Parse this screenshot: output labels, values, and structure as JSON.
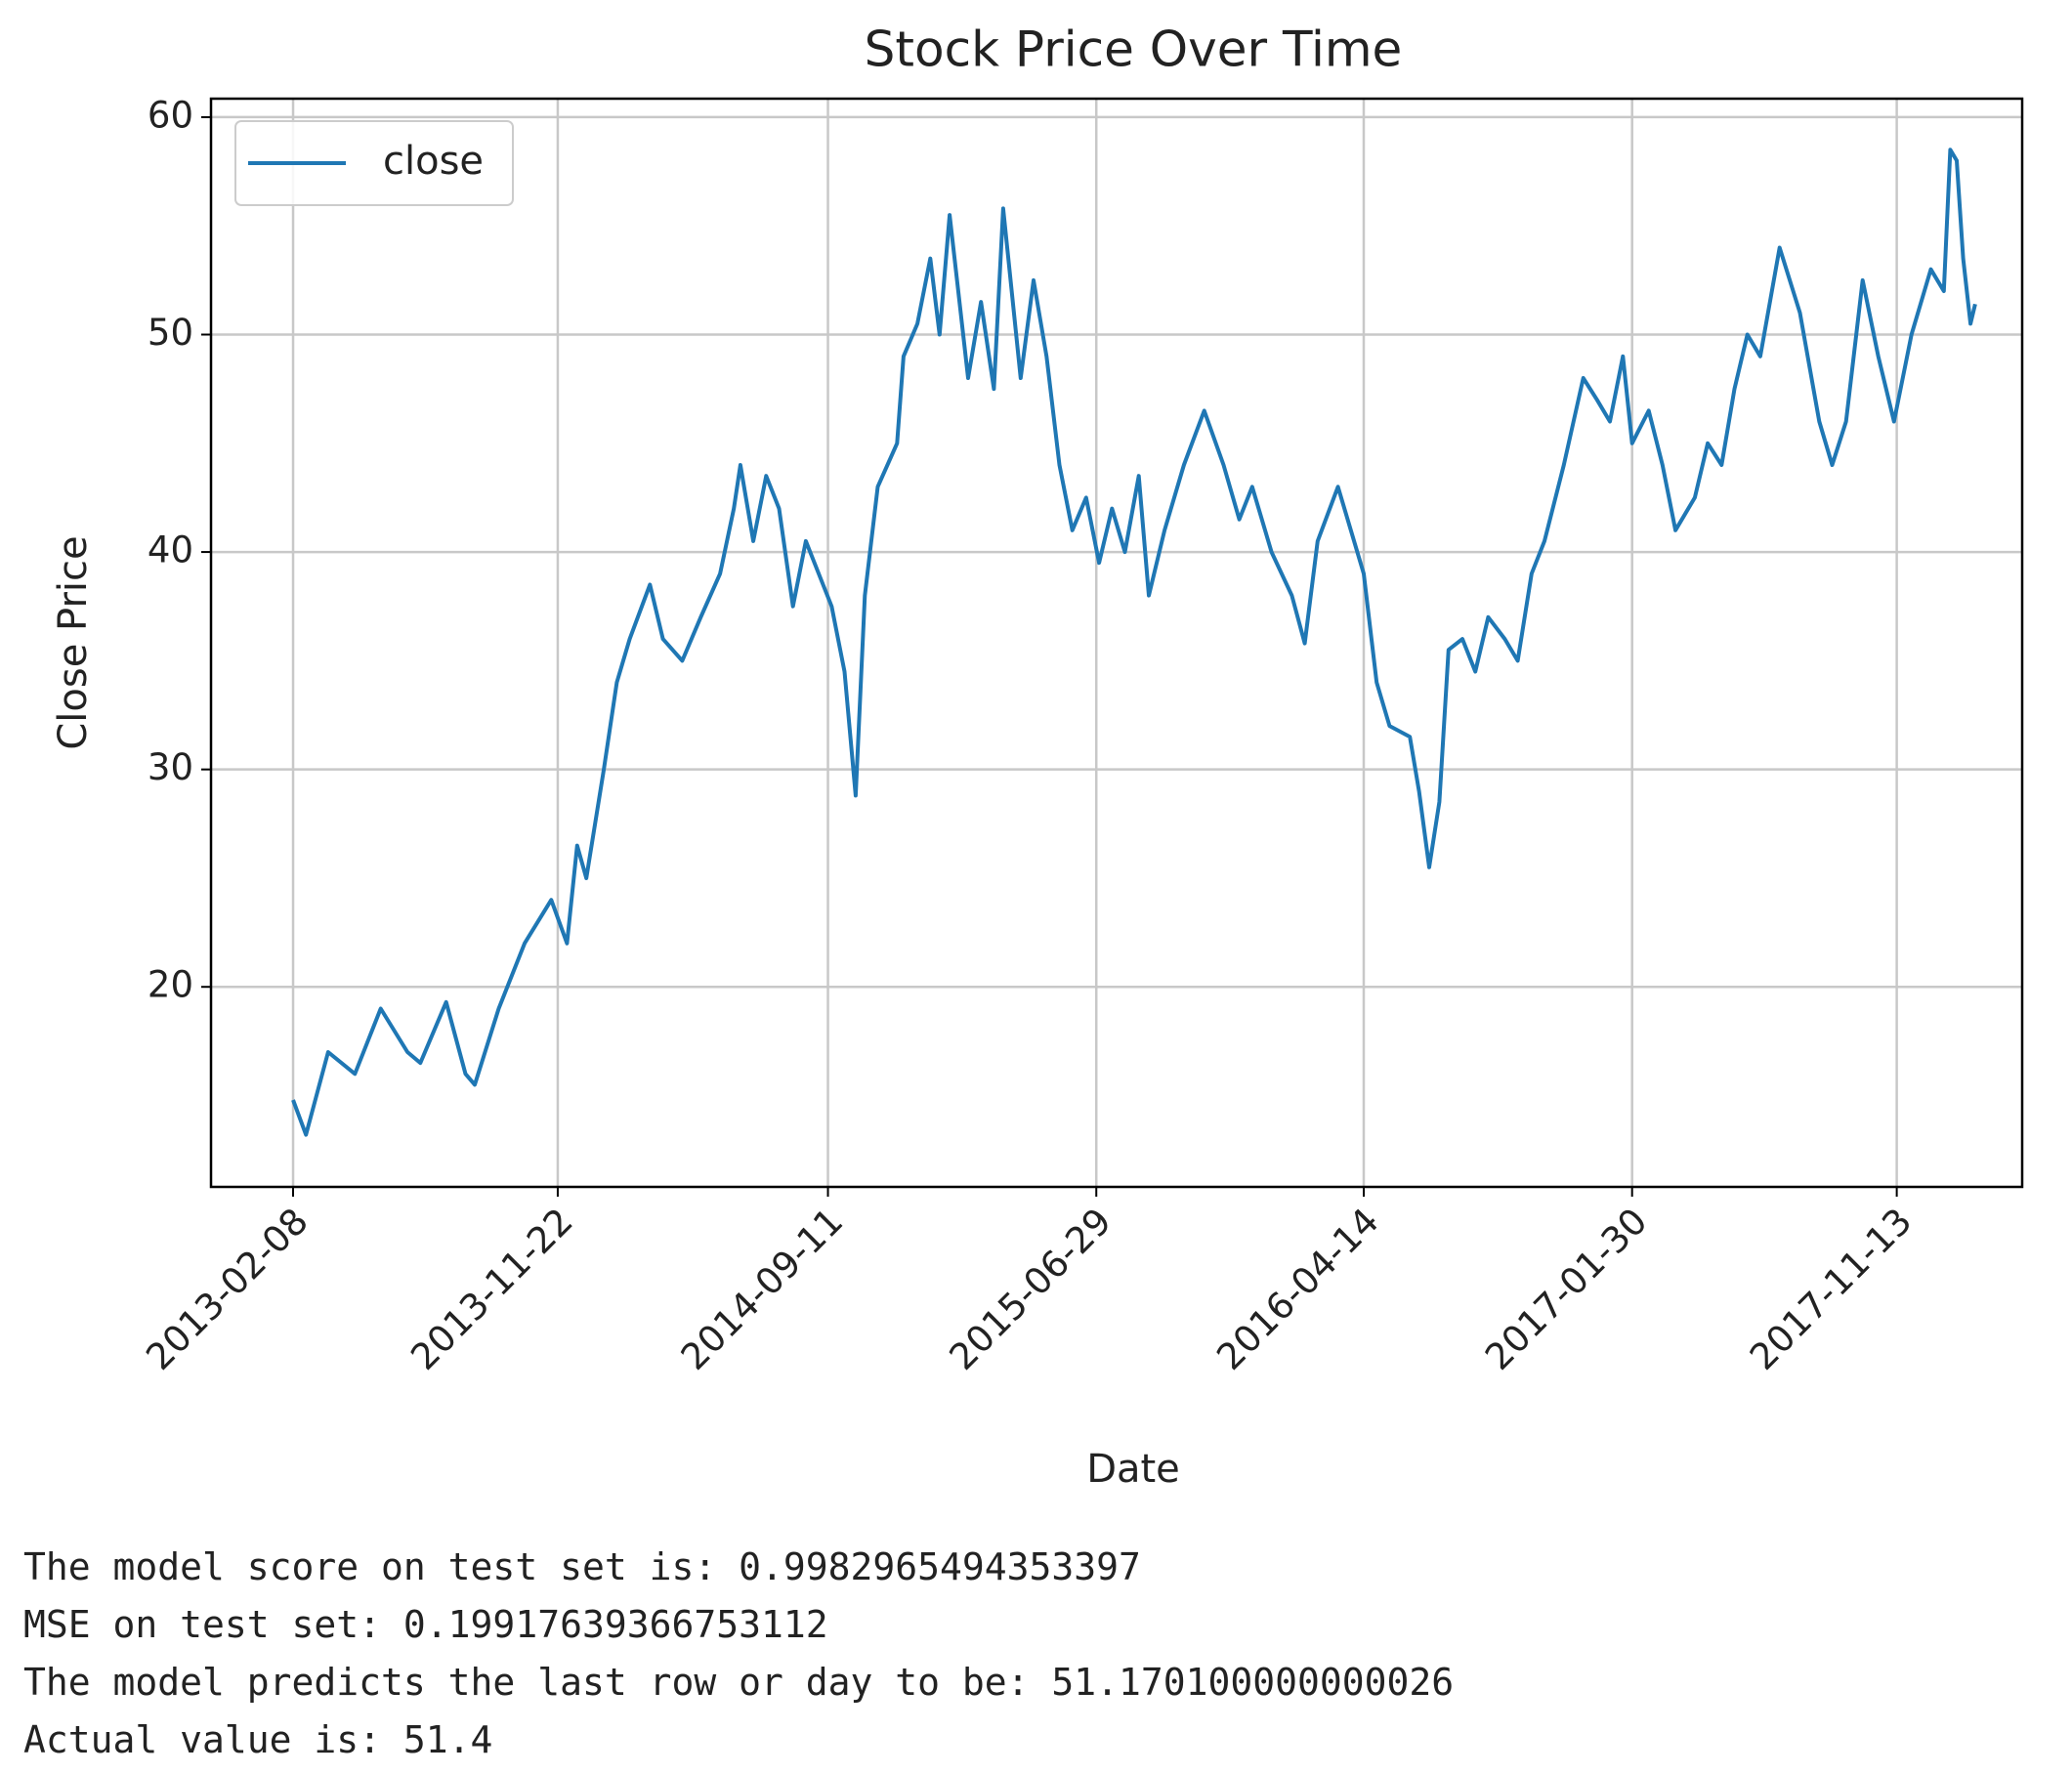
{
  "chart_data": {
    "type": "line",
    "title": "Stock Price Over Time",
    "x_label": "Date",
    "y_label": "Close Price",
    "x": [
      "2013-02-08",
      "2013-02-22",
      "2013-03-18",
      "2013-04-16",
      "2013-05-14",
      "2013-06-12",
      "2013-06-26",
      "2013-07-24",
      "2013-08-14",
      "2013-08-24",
      "2013-09-19",
      "2013-10-17",
      "2013-11-15",
      "2013-12-02",
      "2013-12-13",
      "2013-12-23",
      "2014-01-11",
      "2014-01-25",
      "2014-02-08",
      "2014-03-02",
      "2014-03-16",
      "2014-04-06",
      "2014-04-26",
      "2014-05-17",
      "2014-06-01",
      "2014-06-08",
      "2014-06-22",
      "2014-07-06",
      "2014-07-20",
      "2014-08-04",
      "2014-08-18",
      "2014-09-01",
      "2014-09-15",
      "2014-09-29",
      "2014-10-11",
      "2014-10-21",
      "2014-11-04",
      "2014-11-25",
      "2014-12-02",
      "2014-12-17",
      "2014-12-31",
      "2015-01-10",
      "2015-01-21",
      "2015-02-10",
      "2015-02-24",
      "2015-03-10",
      "2015-03-20",
      "2015-04-08",
      "2015-04-22",
      "2015-05-06",
      "2015-05-20",
      "2015-06-03",
      "2015-06-18",
      "2015-07-02",
      "2015-07-16",
      "2015-07-30",
      "2015-08-14",
      "2015-08-25",
      "2015-09-11",
      "2015-10-02",
      "2015-10-24",
      "2015-11-14",
      "2015-12-01",
      "2015-12-15",
      "2016-01-05",
      "2016-01-27",
      "2016-02-10",
      "2016-02-24",
      "2016-03-17",
      "2016-03-31",
      "2016-04-14",
      "2016-04-28",
      "2016-05-12",
      "2016-06-03",
      "2016-06-13",
      "2016-06-24",
      "2016-07-05",
      "2016-07-15",
      "2016-07-30",
      "2016-08-13",
      "2016-08-27",
      "2016-09-14",
      "2016-09-28",
      "2016-10-13",
      "2016-10-27",
      "2016-11-17",
      "2016-12-08",
      "2016-12-23",
      "2017-01-06",
      "2017-01-20",
      "2017-01-30",
      "2017-02-17",
      "2017-03-04",
      "2017-03-18",
      "2017-04-08",
      "2017-04-22",
      "2017-05-07",
      "2017-05-21",
      "2017-06-04",
      "2017-06-18",
      "2017-07-09",
      "2017-07-31",
      "2017-08-21",
      "2017-09-04",
      "2017-09-19",
      "2017-10-07",
      "2017-10-24",
      "2017-11-10",
      "2017-11-29",
      "2017-12-20",
      "2018-01-03",
      "2018-01-10",
      "2018-01-17",
      "2018-01-24",
      "2018-02-01",
      "2018-02-06"
    ],
    "series": [
      {
        "name": "close",
        "color": "#1f77b4",
        "values": [
          14.8,
          13.2,
          17,
          16,
          19,
          17,
          16.5,
          19.3,
          16,
          15.5,
          19,
          22,
          24,
          22,
          26.5,
          25,
          30,
          34,
          36,
          38.5,
          36,
          35,
          37,
          39,
          42,
          44,
          40.5,
          43.5,
          42,
          37.5,
          40.5,
          39,
          37.5,
          34.5,
          28.8,
          38,
          43,
          45,
          49,
          50.5,
          53.5,
          50,
          55.5,
          48,
          51.5,
          47.5,
          55.8,
          48,
          52.5,
          49,
          44,
          41,
          42.5,
          39.5,
          42,
          40,
          43.5,
          38,
          41,
          44,
          46.5,
          44,
          41.5,
          43,
          40,
          38,
          35.8,
          40.5,
          43,
          41,
          39,
          34,
          32,
          31.5,
          29,
          25.5,
          28.5,
          35.5,
          36,
          34.5,
          37,
          36,
          35,
          39,
          40.5,
          44,
          48,
          47,
          46,
          49,
          45,
          46.5,
          44,
          41,
          42.5,
          45,
          44,
          47.5,
          50,
          49,
          54,
          51,
          46,
          44,
          46,
          52.5,
          49,
          46,
          50,
          53,
          52,
          58.5,
          58,
          53.5,
          50.5,
          51.4
        ]
      }
    ],
    "xlim": [
      "2012-11-11",
      "2018-03-29"
    ],
    "xticks": [
      "2013-02-08",
      "2013-11-22",
      "2014-09-11",
      "2015-06-29",
      "2016-04-14",
      "2017-01-30",
      "2017-11-13"
    ],
    "ylim": [
      10.8,
      60.85
    ],
    "yticks": [
      20,
      30,
      40,
      50,
      60
    ],
    "grid": true,
    "legend": "upper left"
  },
  "output": {
    "lines": [
      "The model score on test set is: 0.9982965494353397",
      "MSE on test set: 0.19917639366753112",
      "The model predicts the last row or day to be: 51.170100000000026",
      "Actual value is: 51.4"
    ]
  }
}
